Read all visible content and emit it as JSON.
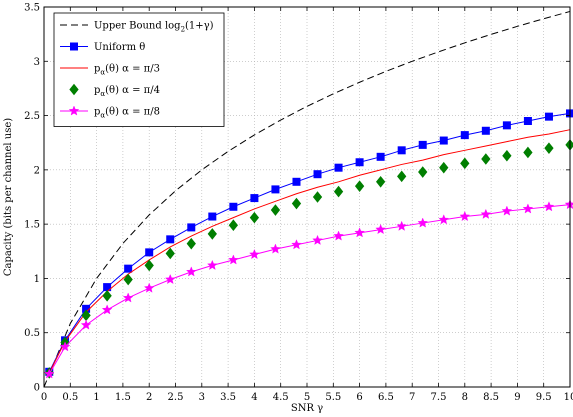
{
  "chart_data": {
    "type": "line",
    "xlabel": "SNR γ",
    "ylabel": "Capacity (bits per channel use)",
    "xlim": [
      0,
      10
    ],
    "ylim": [
      0,
      3.5
    ],
    "x_ticks": [
      0,
      0.5,
      1,
      1.5,
      2,
      2.5,
      3,
      3.5,
      4,
      4.5,
      5,
      5.5,
      6,
      6.5,
      7,
      7.5,
      8,
      8.5,
      9,
      9.5,
      10
    ],
    "x_tick_labels": [
      "0",
      "0.5",
      "1",
      "1.5",
      "2",
      "2.5",
      "3",
      "3.5",
      "4",
      "4.5",
      "5",
      "5.5",
      "6",
      "6.5",
      "7",
      "7.5",
      "8",
      "8.5",
      "9",
      "9.5",
      "10"
    ],
    "y_ticks": [
      0,
      0.5,
      1,
      1.5,
      2,
      2.5,
      3,
      3.5
    ],
    "y_tick_labels": [
      "0",
      "0.5",
      "1",
      "1.5",
      "2",
      "2.5",
      "3",
      "3.5"
    ],
    "grid": true,
    "legend_position": "top-left",
    "series": [
      {
        "name": "Upper Bound log2(1+γ)",
        "legend": {
          "main": "Upper Bound log",
          "sub": "2",
          "tail": "(1+γ)"
        },
        "color": "#000000",
        "line": "dashed",
        "marker": "none",
        "x": [
          0,
          0.5,
          1,
          1.5,
          2,
          2.5,
          3,
          3.5,
          4,
          4.5,
          5,
          5.5,
          6,
          6.5,
          7,
          7.5,
          8,
          8.5,
          9,
          9.5,
          10
        ],
        "y": [
          0,
          0.585,
          1.0,
          1.322,
          1.585,
          1.807,
          2.0,
          2.17,
          2.322,
          2.459,
          2.585,
          2.7,
          2.807,
          2.907,
          3.0,
          3.087,
          3.17,
          3.248,
          3.322,
          3.392,
          3.459
        ]
      },
      {
        "name": "Uniform θ",
        "legend": {
          "main": "Uniform θ",
          "sub": "",
          "tail": ""
        },
        "color": "#0000ff",
        "line": "solid",
        "marker": "square",
        "x": [
          0.1,
          0.4,
          0.8,
          1.2,
          1.6,
          2.0,
          2.4,
          2.8,
          3.2,
          3.6,
          4.0,
          4.4,
          4.8,
          5.2,
          5.6,
          6.0,
          6.4,
          6.8,
          7.2,
          7.6,
          8.0,
          8.4,
          8.8,
          9.2,
          9.6,
          10.0
        ],
        "y": [
          0.14,
          0.43,
          0.72,
          0.92,
          1.09,
          1.24,
          1.36,
          1.47,
          1.57,
          1.66,
          1.74,
          1.82,
          1.89,
          1.96,
          2.02,
          2.07,
          2.12,
          2.18,
          2.23,
          2.27,
          2.32,
          2.36,
          2.41,
          2.45,
          2.49,
          2.52
        ]
      },
      {
        "name": "pα(θ) α = π/3",
        "legend": {
          "main": "p",
          "sub": "α",
          "tail": "(θ) α = π/3"
        },
        "color": "#ff0000",
        "line": "solid",
        "marker": "none",
        "x": [
          0.1,
          0.4,
          0.8,
          1.2,
          1.6,
          2.0,
          2.4,
          2.8,
          3.2,
          3.6,
          4.0,
          4.4,
          4.8,
          5.2,
          5.6,
          6.0,
          6.4,
          6.8,
          7.2,
          7.6,
          8.0,
          8.4,
          8.8,
          9.2,
          9.6,
          10.0
        ],
        "y": [
          0.13,
          0.42,
          0.69,
          0.88,
          1.04,
          1.17,
          1.29,
          1.39,
          1.48,
          1.56,
          1.64,
          1.71,
          1.78,
          1.84,
          1.89,
          1.95,
          2.0,
          2.05,
          2.09,
          2.14,
          2.18,
          2.22,
          2.26,
          2.3,
          2.33,
          2.37
        ]
      },
      {
        "name": "pα(θ) α = π/4",
        "legend": {
          "main": "p",
          "sub": "α",
          "tail": "(θ) α = π/4"
        },
        "color": "#007f00",
        "line": "none",
        "marker": "diamond",
        "x": [
          0.1,
          0.4,
          0.8,
          1.2,
          1.6,
          2.0,
          2.4,
          2.8,
          3.2,
          3.6,
          4.0,
          4.4,
          4.8,
          5.2,
          5.6,
          6.0,
          6.4,
          6.8,
          7.2,
          7.6,
          8.0,
          8.4,
          8.8,
          9.2,
          9.6,
          10.0
        ],
        "y": [
          0.13,
          0.41,
          0.66,
          0.84,
          0.99,
          1.12,
          1.23,
          1.32,
          1.41,
          1.49,
          1.56,
          1.63,
          1.69,
          1.75,
          1.8,
          1.85,
          1.89,
          1.94,
          1.98,
          2.02,
          2.06,
          2.1,
          2.13,
          2.16,
          2.2,
          2.23
        ]
      },
      {
        "name": "pα(θ) α = π/8",
        "legend": {
          "main": "p",
          "sub": "α",
          "tail": "(θ) α = π/8"
        },
        "color": "#ff00ff",
        "line": "solid",
        "marker": "star",
        "x": [
          0.1,
          0.4,
          0.8,
          1.2,
          1.6,
          2.0,
          2.4,
          2.8,
          3.2,
          3.6,
          4.0,
          4.4,
          4.8,
          5.2,
          5.6,
          6.0,
          6.4,
          6.8,
          7.2,
          7.6,
          8.0,
          8.4,
          8.8,
          9.2,
          9.6,
          10.0
        ],
        "y": [
          0.12,
          0.37,
          0.57,
          0.71,
          0.82,
          0.91,
          0.99,
          1.06,
          1.12,
          1.17,
          1.22,
          1.27,
          1.31,
          1.35,
          1.39,
          1.42,
          1.45,
          1.48,
          1.51,
          1.54,
          1.57,
          1.59,
          1.62,
          1.64,
          1.66,
          1.68
        ]
      }
    ]
  }
}
